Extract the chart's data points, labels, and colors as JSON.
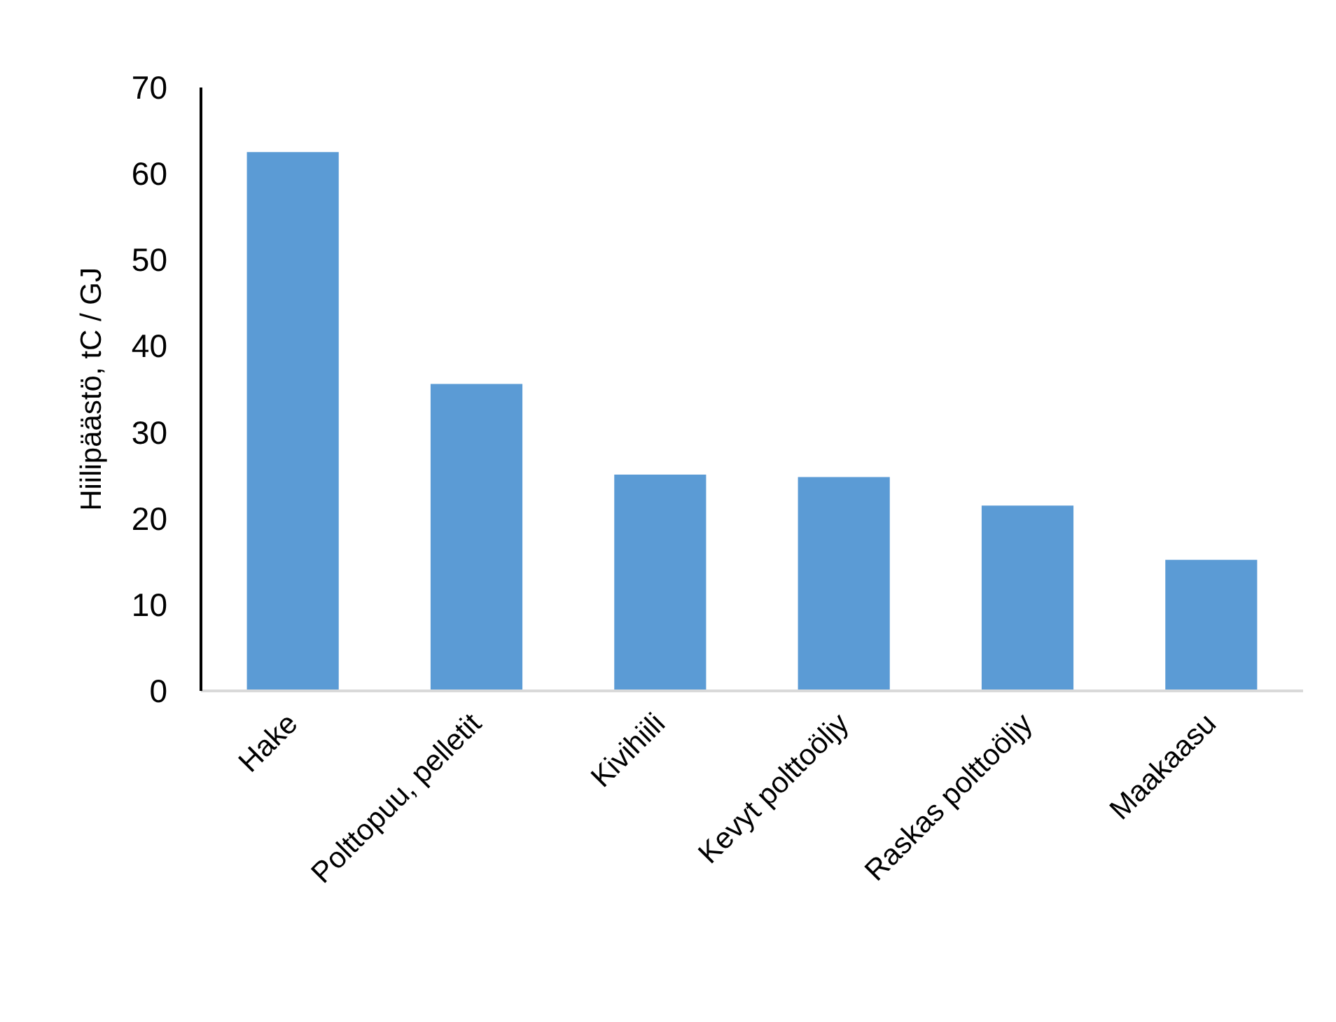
{
  "chart_data": {
    "type": "bar",
    "ylabel": "Hiilipäästö, tC / GJ",
    "categories": [
      "Hake",
      "Polttopuu, pelletit",
      "Kivihiili",
      "Kevyt polttoöljy",
      "Raskas polttoöljy",
      "Maakaasu"
    ],
    "values": [
      62.5,
      35.6,
      25.1,
      24.8,
      21.5,
      15.2
    ],
    "color": "#5b9bd5",
    "ylim": [
      0,
      70
    ],
    "yticks": [
      0,
      10,
      20,
      30,
      40,
      50,
      60,
      70
    ],
    "grid": false
  }
}
